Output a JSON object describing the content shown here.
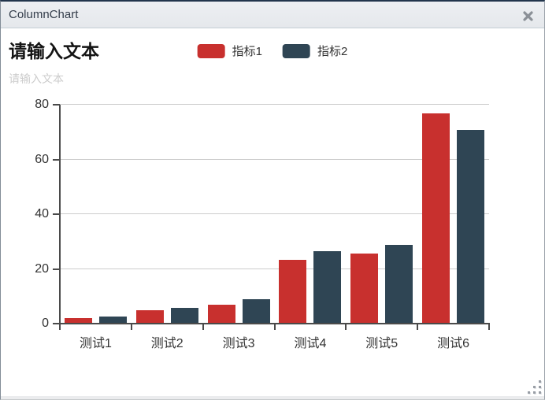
{
  "window": {
    "title": "ColumnChart"
  },
  "header": {
    "title": "请输入文本",
    "subtitle": "请输入文本"
  },
  "legend": {
    "items": [
      {
        "label": "指标1",
        "color": "#c8302e"
      },
      {
        "label": "指标2",
        "color": "#2f4554"
      }
    ]
  },
  "chart_data": {
    "type": "bar",
    "title": "请输入文本",
    "subtitle": "请输入文本",
    "categories": [
      "测试1",
      "测试2",
      "测试3",
      "测试4",
      "测试5",
      "测试6"
    ],
    "series": [
      {
        "name": "指标1",
        "color": "#c8302e",
        "values": [
          2.0,
          4.9,
          7.0,
          23.2,
          25.6,
          76.7
        ]
      },
      {
        "name": "指标2",
        "color": "#2f4554",
        "values": [
          2.6,
          5.9,
          9.0,
          26.4,
          28.7,
          70.7
        ]
      }
    ],
    "xlabel": "",
    "ylabel": "",
    "ylim": [
      0,
      80
    ],
    "yticks": [
      0,
      20,
      40,
      60,
      80
    ],
    "grid": true,
    "legend_position": "top-center",
    "colors": {
      "axis": "#4a4a4a",
      "gridline": "#cccccc",
      "tick_label": "#333333"
    }
  }
}
